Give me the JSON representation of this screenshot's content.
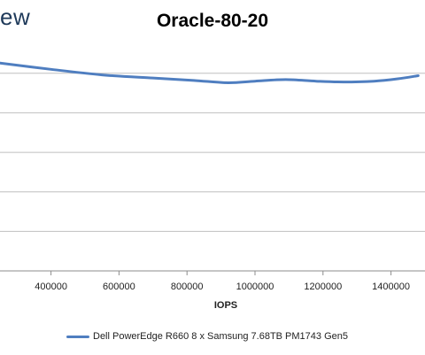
{
  "header": {
    "logo_fragment": "ew"
  },
  "chart_data": {
    "type": "line",
    "title": "Oracle-80-20",
    "xlabel": "IOPS",
    "ylabel": "",
    "xlim": [
      250000,
      1500000
    ],
    "ylim": [
      0,
      2.8
    ],
    "y_gridlines": [
      0.5,
      1.0,
      1.5,
      2.0,
      2.5
    ],
    "x_ticks": [
      400000,
      600000,
      800000,
      1000000,
      1200000,
      1400000
    ],
    "x_tick_labels": [
      "400000",
      "600000",
      "800000",
      "1000000",
      "1200000",
      "1400000"
    ],
    "grid": true,
    "legend_position": "bottom",
    "series": [
      {
        "name": "Dell PowerEdge R660 8 x Samsung 7.68TB PM1743 Gen5",
        "color": "#4f7ec0",
        "x": [
          250000,
          400000,
          550000,
          700000,
          820000,
          920000,
          1000000,
          1090000,
          1180000,
          1260000,
          1350000,
          1420000,
          1480000
        ],
        "y": [
          2.63,
          2.55,
          2.48,
          2.44,
          2.41,
          2.38,
          2.4,
          2.42,
          2.4,
          2.39,
          2.4,
          2.43,
          2.47
        ]
      }
    ]
  }
}
